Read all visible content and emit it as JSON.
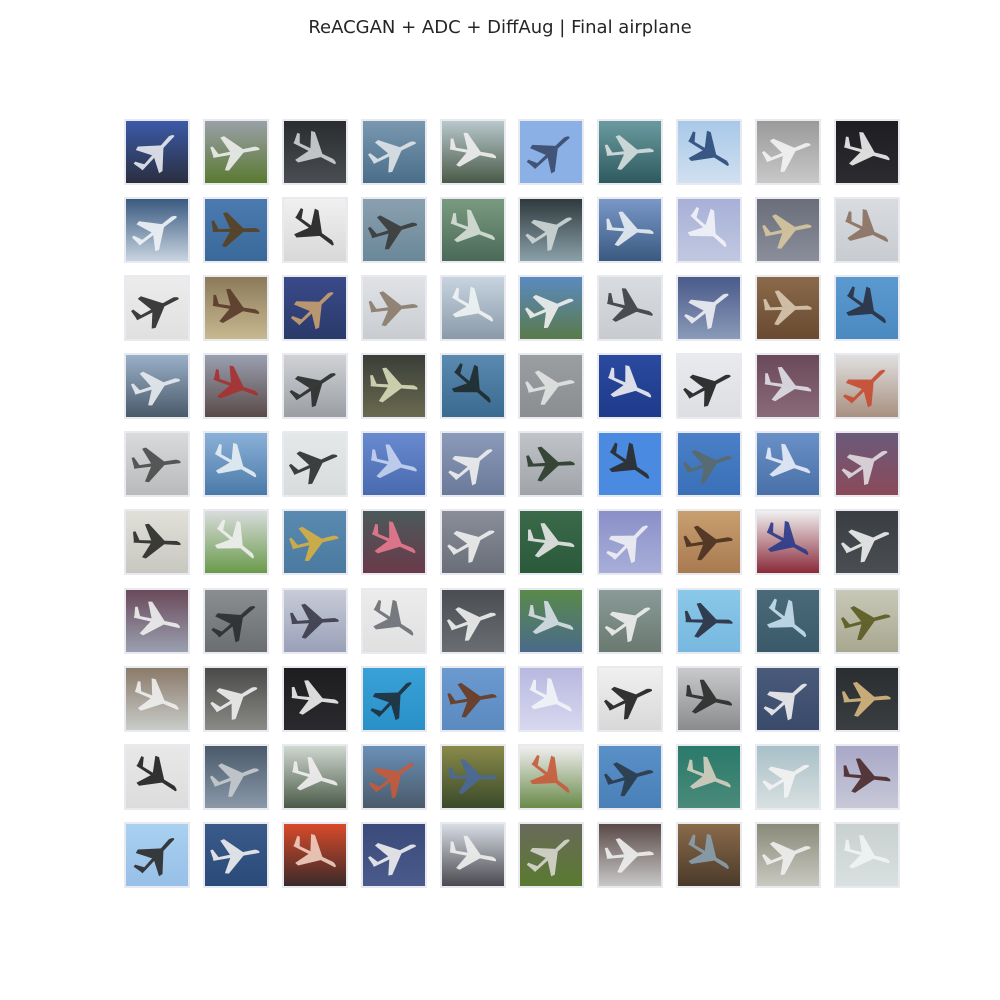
{
  "title": "ReACGAN + ADC + DiffAug | Final airplane",
  "grid": {
    "rows": 10,
    "cols": 10
  },
  "tiles": [
    [
      "#3c5aa8",
      "#2a2f3f",
      "#e8eaf0"
    ],
    [
      "#9aa0a8",
      "#5a7a30",
      "#eeeeee"
    ],
    [
      "#2a2c2e",
      "#4a4e52",
      "#cfd3d6"
    ],
    [
      "#7a98b0",
      "#4a6e8a",
      "#e0e4e8"
    ],
    [
      "#b8c8cc",
      "#4a5a48",
      "#f0f0f0"
    ],
    [
      "#8ab0e6",
      "#8ab0e6",
      "#3a4a6a"
    ],
    [
      "#6a9aa0",
      "#2e5a5e",
      "#d8e0e0"
    ],
    [
      "#a8c8e8",
      "#d0e0f0",
      "#2a4a7a"
    ],
    [
      "#9a9a9a",
      "#c8c8c8",
      "#f4f4f4"
    ],
    [
      "#1e1e22",
      "#2c2c30",
      "#f0f0f0"
    ],
    [
      "#3a5a80",
      "#c8d4e0",
      "#f0f4f8"
    ],
    [
      "#4a7ab0",
      "#3a6a9a",
      "#5a4020"
    ],
    [
      "#f0f0f0",
      "#d8d8d8",
      "#1e1e1e"
    ],
    [
      "#8aa0b0",
      "#6a8898",
      "#3a3a3a"
    ],
    [
      "#7a9a80",
      "#4a6a58",
      "#d8e0d8"
    ],
    [
      "#2e3a3e",
      "#8aa0a8",
      "#d0d8d8"
    ],
    [
      "#7a98c8",
      "#3a5a80",
      "#e8eef4"
    ],
    [
      "#a8b0d8",
      "#c0c8e0",
      "#f4f4f8"
    ],
    [
      "#6a6e7a",
      "#8a8e9a",
      "#d8c8a0"
    ],
    [
      "#d8dce0",
      "#c8ccd0",
      "#8a7060"
    ],
    [
      "#ececec",
      "#e0e0e0",
      "#2a2a2a"
    ],
    [
      "#8a7a5a",
      "#c8b890",
      "#5a3a2a"
    ],
    [
      "#3a4a8a",
      "#2a3a6a",
      "#c8a070"
    ],
    [
      "#e0e2e6",
      "#c8ccd0",
      "#8a7a6a"
    ],
    [
      "#c8d4e0",
      "#8a9aa8",
      "#f0f4f4"
    ],
    [
      "#5a8ac0",
      "#5a7a4a",
      "#f0f0f0"
    ],
    [
      "#d8dce0",
      "#c8ccd0",
      "#3a3e42"
    ],
    [
      "#4a5a8a",
      "#8a9ab8",
      "#f0f0f4"
    ],
    [
      "#8a6a4a",
      "#6a4a30",
      "#d8c8b0"
    ],
    [
      "#5a9ad0",
      "#4a8ac0",
      "#2a3040"
    ],
    [
      "#9ab0c8",
      "#4a5a6a",
      "#e8ecf0"
    ],
    [
      "#9aa0b0",
      "#5a4a48",
      "#a83030"
    ],
    [
      "#d0d2d6",
      "#9a9ea2",
      "#2a2a2a"
    ],
    [
      "#3a3e38",
      "#6a6a50",
      "#d8dcb8"
    ],
    [
      "#5a8ab0",
      "#3a6a90",
      "#1e2a2a"
    ],
    [
      "#9a9ea0",
      "#8a8e90",
      "#e4e4e4"
    ],
    [
      "#2a4aa0",
      "#1e3a8a",
      "#f0f0f0"
    ],
    [
      "#e8eaee",
      "#dcdee2",
      "#1e1e1e"
    ],
    [
      "#6a4a5a",
      "#8a6a78",
      "#e0e0e8"
    ],
    [
      "#e0e0e0",
      "#a89080",
      "#c84a30"
    ],
    [
      "#d8dadc",
      "#b8babc",
      "#4a4a4a"
    ],
    [
      "#8ab0d8",
      "#4a7aa8",
      "#e8f0f4"
    ],
    [
      "#e4e8e8",
      "#d8dcdc",
      "#2a2e2e"
    ],
    [
      "#6a8ad0",
      "#4a6ab0",
      "#c8d4f0"
    ],
    [
      "#8a9ab8",
      "#6a7a98",
      "#f0f0f0"
    ],
    [
      "#c0c4c8",
      "#a0a4a8",
      "#2a3a2a"
    ],
    [
      "#4a8ae0",
      "#4a8ae0",
      "#2a2a2a"
    ],
    [
      "#4a80c8",
      "#3a70b8",
      "#5a6a6a"
    ],
    [
      "#6a90c8",
      "#4a70a8",
      "#e8eef8"
    ],
    [
      "#6a5a7a",
      "#8a4a5a",
      "#e0dce0"
    ],
    [
      "#e0e0d8",
      "#c8c8c0",
      "#2a2a26"
    ],
    [
      "#d8dcdc",
      "#6a9a4a",
      "#f0f0f0"
    ],
    [
      "#5a8ab0",
      "#4a7aa0",
      "#d8b040"
    ],
    [
      "#4a5a5a",
      "#6a3a4a",
      "#e87a90"
    ],
    [
      "#8a8e98",
      "#6a6e78",
      "#f0f0f0"
    ],
    [
      "#3a6a4a",
      "#2a5a3a",
      "#e8e8e8"
    ],
    [
      "#8a90c8",
      "#a8aed8",
      "#f0f0f4"
    ],
    [
      "#c8a070",
      "#a87a50",
      "#4a3020"
    ],
    [
      "#f0f0f0",
      "#8a2a3a",
      "#2a3a8a"
    ],
    [
      "#3a3e42",
      "#4a4e52",
      "#f0f0f0"
    ],
    [
      "#6a4a5a",
      "#9aa0b0",
      "#f0f0f0"
    ],
    [
      "#8a8e90",
      "#6a6e70",
      "#2a2e30"
    ],
    [
      "#c8ccd8",
      "#9aa0b8",
      "#3a3a4a"
    ],
    [
      "#ececec",
      "#e0e0e0",
      "#6a6e72"
    ],
    [
      "#4a4e52",
      "#6a6e72",
      "#f0f0f0"
    ],
    [
      "#5a8a4a",
      "#4a6a8a",
      "#d8e0e8"
    ],
    [
      "#8a9a98",
      "#6a7a70",
      "#f0f0f0"
    ],
    [
      "#8ac8e8",
      "#78b8e0",
      "#2a2e40"
    ],
    [
      "#4a6a7a",
      "#3a5a6a",
      "#c8e0f0"
    ],
    [
      "#c8c8b8",
      "#a8a890",
      "#5a5a20"
    ],
    [
      "#8a7a6a",
      "#c8ccc8",
      "#f0f0f0"
    ],
    [
      "#4a4a48",
      "#8a8a86",
      "#f0f0f0"
    ],
    [
      "#1e1e20",
      "#2a2a2e",
      "#f0f0f0"
    ],
    [
      "#3aa0d8",
      "#2a90c8",
      "#1e2e3a"
    ],
    [
      "#6a9ad0",
      "#5a8ac0",
      "#6a3a20"
    ],
    [
      "#b8b8e0",
      "#d8d8f0",
      "#f4f4f8"
    ],
    [
      "#f0f0f0",
      "#d8d8d8",
      "#1e1e1e"
    ],
    [
      "#c8cacc",
      "#8a8c8e",
      "#2a2a2a"
    ],
    [
      "#4a5a7a",
      "#3a4a6a",
      "#f0f0f0"
    ],
    [
      "#2a2e30",
      "#3a3e40",
      "#d8b880"
    ],
    [
      "#e8e8e8",
      "#dcdcdc",
      "#1e1e1e"
    ],
    [
      "#4a5a6a",
      "#8a98a8",
      "#c8ccd0"
    ],
    [
      "#d0d8d0",
      "#4a5a48",
      "#f0f0f0"
    ],
    [
      "#6a90b8",
      "#4a5a6a",
      "#c85a3a"
    ],
    [
      "#8a8a4a",
      "#3a4a2a",
      "#4a6a9a"
    ],
    [
      "#f0f0f0",
      "#6a8a4a",
      "#c85a3a"
    ],
    [
      "#5a90c8",
      "#4a80b8",
      "#2a3a4a"
    ],
    [
      "#2a7a6a",
      "#4a8a7a",
      "#d8d0c0"
    ],
    [
      "#a8c0c8",
      "#d8e0e0",
      "#f4f4f4"
    ],
    [
      "#a8a8c8",
      "#c8c8d8",
      "#4a2a2a"
    ],
    [
      "#a8d0f0",
      "#98c0e8",
      "#2a2a2a"
    ],
    [
      "#3a5a8a",
      "#2a4a7a",
      "#f0f0f0"
    ],
    [
      "#d84a2a",
      "#3a2a2a",
      "#f0d0c0"
    ],
    [
      "#3a4a7a",
      "#4a5a8a",
      "#f0f0f0"
    ],
    [
      "#d8dce4",
      "#4a4a50",
      "#f0f0f0"
    ],
    [
      "#6a6a5a",
      "#5a7a30",
      "#d8d8d0"
    ],
    [
      "#5a4a48",
      "#c8c8c8",
      "#f0f0f0"
    ],
    [
      "#8a6a4a",
      "#4a3a2a",
      "#8aa0b0"
    ],
    [
      "#8a8a7a",
      "#c8c8c0",
      "#f0f0f0"
    ],
    [
      "#c8d0d0",
      "#d8e0e0",
      "#f0f4f4"
    ]
  ]
}
